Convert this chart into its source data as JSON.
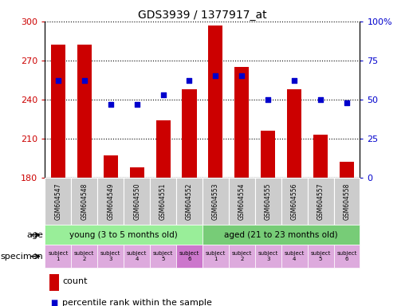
{
  "title": "GDS3939 / 1377917_at",
  "categories": [
    "GSM604547",
    "GSM604548",
    "GSM604549",
    "GSM604550",
    "GSM604551",
    "GSM604552",
    "GSM604553",
    "GSM604554",
    "GSM604555",
    "GSM604556",
    "GSM604557",
    "GSM604558"
  ],
  "bar_values": [
    282,
    282,
    197,
    188,
    224,
    248,
    297,
    265,
    216,
    248,
    213,
    192
  ],
  "bar_base": 180,
  "percentile_values": [
    62,
    62,
    47,
    47,
    53,
    62,
    65,
    65,
    50,
    62,
    50,
    48
  ],
  "bar_color": "#cc0000",
  "dot_color": "#0000cc",
  "ylim_left": [
    180,
    300
  ],
  "ylim_right": [
    0,
    100
  ],
  "yticks_left": [
    180,
    210,
    240,
    270,
    300
  ],
  "yticks_right": [
    0,
    25,
    50,
    75,
    100
  ],
  "yticklabels_right": [
    "0",
    "25",
    "50",
    "75",
    "100%"
  ],
  "left_axis_color": "#cc0000",
  "right_axis_color": "#0000cc",
  "age_groups": [
    {
      "label": "young (3 to 5 months old)",
      "start": 0,
      "end": 6,
      "color": "#99ee99"
    },
    {
      "label": "aged (21 to 23 months old)",
      "start": 6,
      "end": 12,
      "color": "#77cc77"
    }
  ],
  "specimen_colors_young": "#ddaadd",
  "specimen_color_young6": "#cc77cc",
  "specimen_colors_aged": "#ddaadd",
  "specimen_labels": [
    "subject\n1",
    "subject\n2",
    "subject\n3",
    "subject\n4",
    "subject\n5",
    "subject\n6",
    "subject\n1",
    "subject\n2",
    "subject\n3",
    "subject\n4",
    "subject\n5",
    "subject\n6"
  ],
  "legend_count_color": "#cc0000",
  "legend_dot_color": "#0000cc",
  "tick_label_bg": "#cccccc",
  "fig_bg": "#ffffff"
}
